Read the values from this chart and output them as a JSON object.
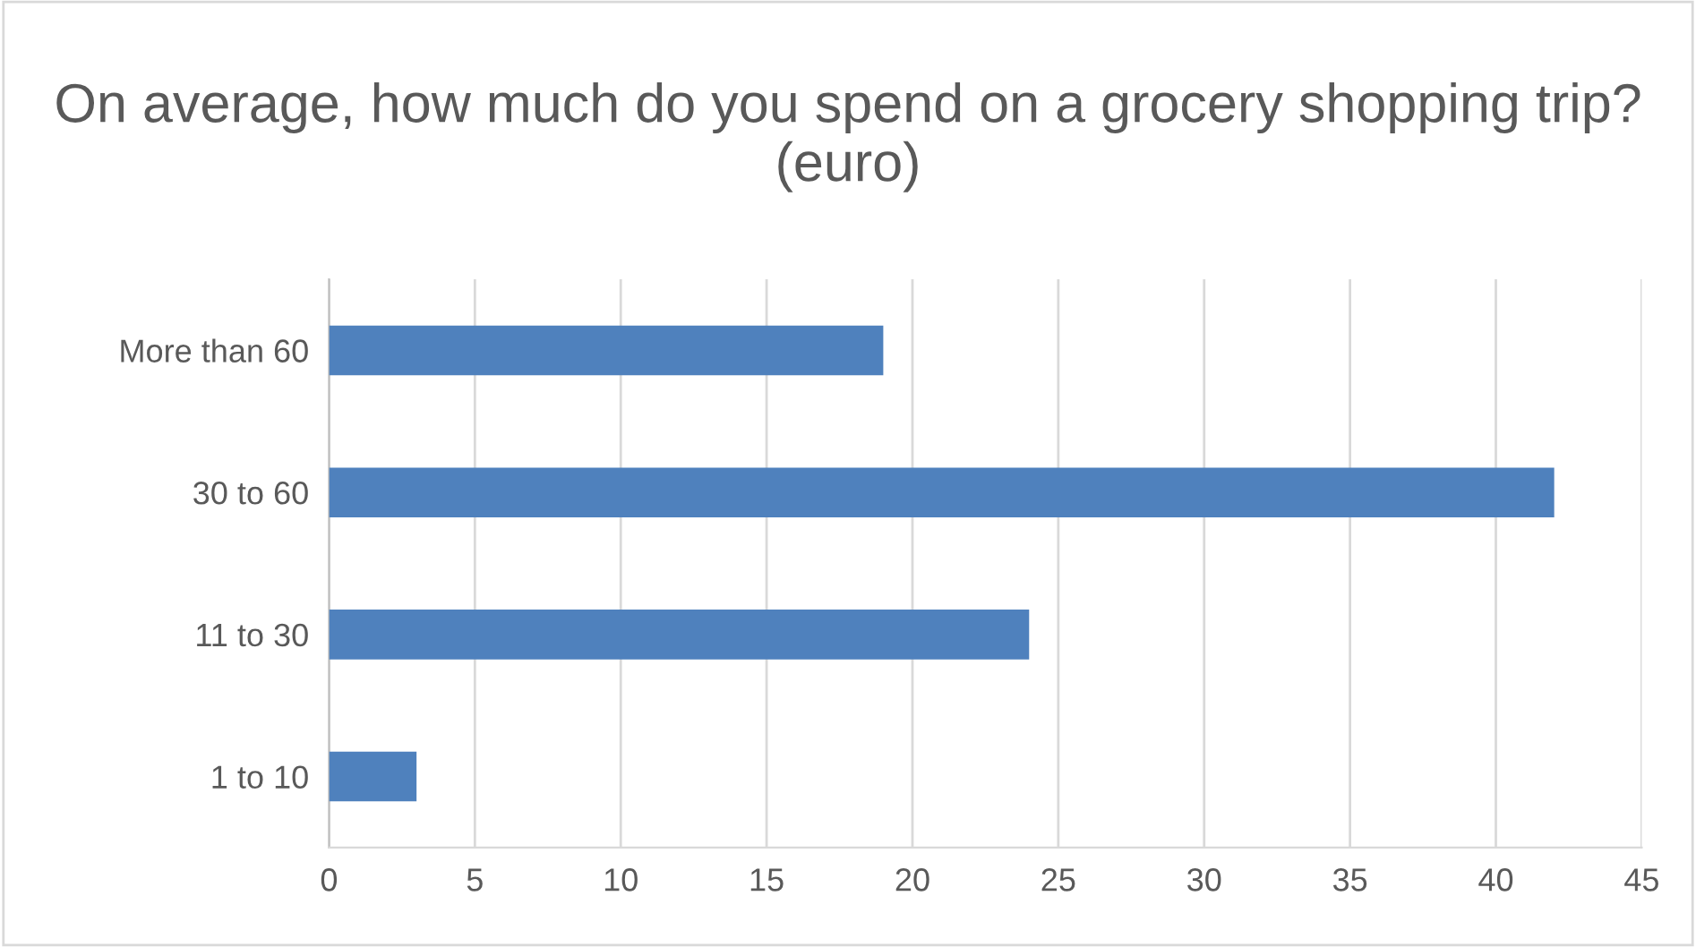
{
  "chart_data": {
    "type": "bar",
    "orientation": "horizontal",
    "title": "On average, how much do you spend on a grocery shopping trip? (euro)",
    "categories": [
      "More than 60",
      "30 to 60",
      "11 to 30",
      "1 to 10"
    ],
    "values": [
      19,
      42,
      24,
      3
    ],
    "color": "#4f81bd",
    "xlim": [
      0,
      45
    ],
    "xticks": [
      0,
      5,
      10,
      15,
      20,
      25,
      30,
      35,
      40,
      45
    ],
    "grid": "x",
    "legend": false
  }
}
